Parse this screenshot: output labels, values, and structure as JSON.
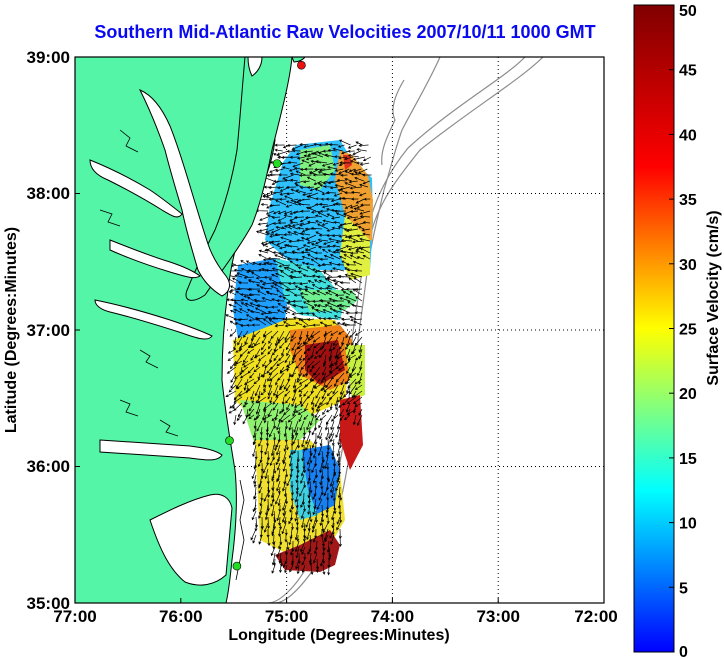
{
  "chart_data": {
    "type": "heatmap",
    "title": "Southern Mid-Atlantic Raw Velocities 2007/10/11 1000 GMT",
    "xlabel": "Longitude (Degrees:Minutes)",
    "ylabel": "Latitude (Degrees:Minutes)",
    "x_ticks": [
      "77:00",
      "76:00",
      "75:00",
      "74:00",
      "73:00",
      "72:00"
    ],
    "y_ticks": [
      "35:00",
      "36:00",
      "37:00",
      "38:00",
      "39:00"
    ],
    "xlim": [
      -77,
      -72
    ],
    "ylim": [
      35,
      39
    ],
    "grid": true,
    "colorbar": {
      "label": "Surface Velocity (cm/s)",
      "min": 0,
      "max": 50,
      "ticks": [
        "0",
        "5",
        "10",
        "15",
        "20",
        "25",
        "30",
        "35",
        "40",
        "45",
        "50"
      ]
    },
    "colors": {
      "land": "#55f5a8",
      "water": "#ffffff",
      "coast": "#000000",
      "bathymetry": "#8c8c8c",
      "station_green": "#22dd22",
      "station_red": "#ee1111"
    },
    "stations": [
      {
        "color": "red",
        "lon": -74.86,
        "lat": 38.94
      },
      {
        "color": "green",
        "lon": -75.09,
        "lat": 38.22
      },
      {
        "color": "green",
        "lon": -75.54,
        "lat": 36.19
      },
      {
        "color": "green",
        "lon": -75.47,
        "lat": 35.27
      }
    ]
  }
}
